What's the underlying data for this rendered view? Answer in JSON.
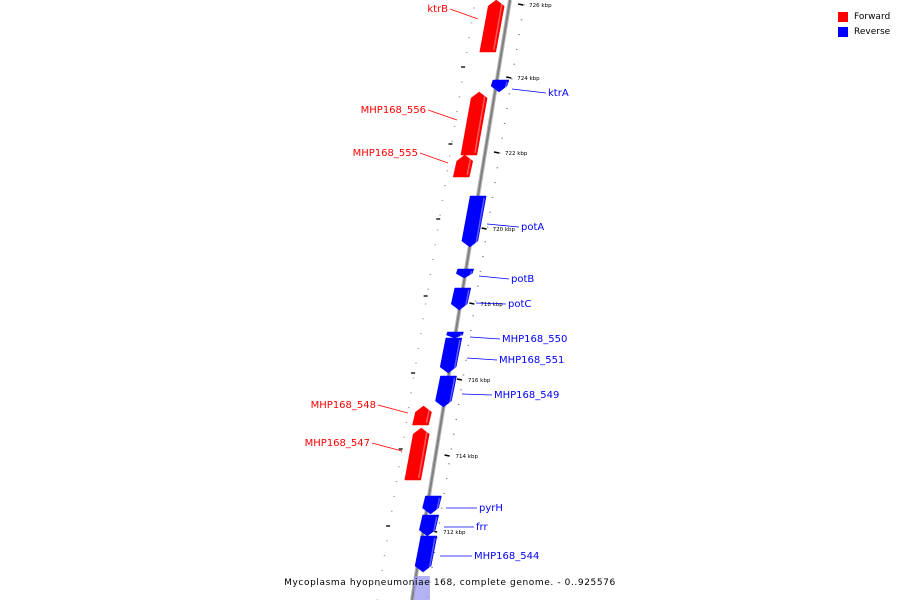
{
  "colors": {
    "forward": "#ff0000",
    "reverse": "#0000ff",
    "backbone": "#a0a0a0"
  },
  "legend": [
    {
      "label": "Forward",
      "color": "#ff0000"
    },
    {
      "label": "Reverse",
      "color": "#0000ff"
    }
  ],
  "caption": "Mycoplasma hyopneumoniae 168, complete genome. - 0..925576",
  "ticks": [
    {
      "label": "726 kbp"
    },
    {
      "label": "724 kbp"
    },
    {
      "label": "722 kbp"
    },
    {
      "label": "720 kbp"
    },
    {
      "label": "718 kbp"
    },
    {
      "label": "716 kbp"
    },
    {
      "label": "714 kbp"
    },
    {
      "label": "712 kbp"
    }
  ],
  "genes": [
    {
      "name": "ktrB",
      "strand": "forward"
    },
    {
      "name": "ktrA",
      "strand": "reverse"
    },
    {
      "name": "MHP168_556",
      "strand": "forward"
    },
    {
      "name": "MHP168_555",
      "strand": "forward"
    },
    {
      "name": "potA",
      "strand": "reverse"
    },
    {
      "name": "potB",
      "strand": "reverse"
    },
    {
      "name": "potC",
      "strand": "reverse"
    },
    {
      "name": "MHP168_550",
      "strand": "reverse"
    },
    {
      "name": "MHP168_551",
      "strand": "reverse"
    },
    {
      "name": "MHP168_549",
      "strand": "reverse"
    },
    {
      "name": "MHP168_548",
      "strand": "forward"
    },
    {
      "name": "MHP168_547",
      "strand": "forward"
    },
    {
      "name": "pyrH",
      "strand": "reverse"
    },
    {
      "name": "frr",
      "strand": "reverse"
    },
    {
      "name": "MHP168_544",
      "strand": "reverse"
    }
  ]
}
